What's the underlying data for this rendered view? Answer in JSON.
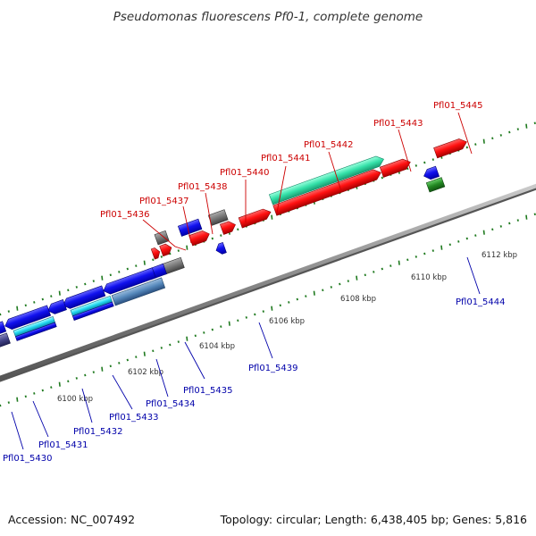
{
  "title": "Pseudomonas fluorescens Pf0-1, complete genome",
  "footer": {
    "accession": "Accession: NC_007492",
    "topology": "Topology: circular; Length: 6,438,405 bp; Genes: 5,816"
  },
  "colors": {
    "forward_label": "#cc0000",
    "reverse_label": "#0000aa",
    "forward_gene": "#ff0000",
    "reverse_gene": "#0000ee",
    "rna_gene": "#777777",
    "highlight_teal": "#33e0a8",
    "highlight_cyan": "#22d8f0",
    "highlight_steel": "#5588bb",
    "highlight_navy": "#333388",
    "green_gene": "#228822",
    "backbone": "#888888",
    "tick": "#1f7a1f"
  },
  "scale_labels": [
    "6100 kbp",
    "6102 kbp",
    "6104 kbp",
    "6106 kbp",
    "6108 kbp",
    "6110 kbp",
    "6112 kbp"
  ],
  "forward_genes": [
    "Pfl01_5436",
    "Pfl01_5437",
    "Pfl01_5438",
    "Pfl01_5440",
    "Pfl01_5441",
    "Pfl01_5442",
    "Pfl01_5443",
    "Pfl01_5445"
  ],
  "reverse_genes": [
    "Pfl01_5430",
    "Pfl01_5431",
    "Pfl01_5432",
    "Pfl01_5433",
    "Pfl01_5434",
    "Pfl01_5435",
    "Pfl01_5439",
    "Pfl01_5444"
  ]
}
